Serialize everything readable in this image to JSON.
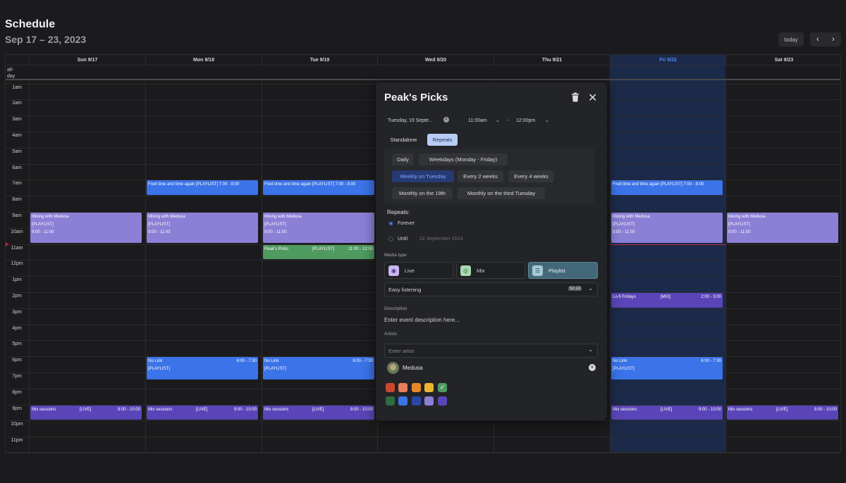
{
  "header": {
    "title": "Schedule",
    "range": "Sep 17 – 23, 2023"
  },
  "nav": {
    "today": "today",
    "prev": "‹",
    "next": "›"
  },
  "calendar": {
    "allday_label_1": "all-",
    "allday_label_2": "day",
    "days": [
      "Sun 9/17",
      "Mon 9/18",
      "Tue 9/19",
      "Wed 9/20",
      "Thu 9/21",
      "Fri 9/22",
      "Sat 9/23"
    ],
    "today_color": "#4f8bff",
    "hours": [
      "1am",
      "2am",
      "3am",
      "4am",
      "5am",
      "6am",
      "7am",
      "8am",
      "9am",
      "10am",
      "11am",
      "12pm",
      "1pm",
      "2pm",
      "3pm",
      "4pm",
      "5pm",
      "6pm",
      "7pm",
      "8pm",
      "9pm",
      "10pm",
      "11pm"
    ]
  },
  "events": {
    "fred": {
      "title": "Fred time and time again",
      "tag": "[PLAYLIST]",
      "time": "7:00 - 8:00"
    },
    "medusa": {
      "title": "Mixing with Medusa",
      "tag": "[PLAYLIST]",
      "time": "9:00 - 11:00"
    },
    "peaks": {
      "title": "Peak's Picks",
      "tag": "[PLAYLIST]",
      "time": "11:00 - 12:00"
    },
    "lofi": {
      "title": "Lo-fi Fridays",
      "tag": "[MIX]",
      "time": "2:00 - 3:00"
    },
    "nolink": {
      "title": "No Link",
      "tag": "[PLAYLIST]",
      "time": "6:00 - 7:30"
    },
    "mix": {
      "title": "Mix sessions",
      "tag": "[LIVE]",
      "time": "9:00 - 10:00"
    }
  },
  "modal": {
    "title": "Peak's Picks",
    "date": "Tuesday, 19 Septe...",
    "dot": "·",
    "start": "11:00am",
    "dash": "-",
    "end": "12:00pm",
    "mode_standalone": "Standalone",
    "mode_repeats": "Repeats",
    "options": [
      "Daily",
      "Weekdays (Monday - Friday)",
      "Weekly on Tuesday",
      "Every 2 weeks",
      "Every 4 weeks",
      "Monthly on the 19th",
      "Monthly on the third Tuesday"
    ],
    "repeats_label": "Repeats:",
    "forever": "Forever",
    "until": "Until",
    "until_date": "22 September 2024",
    "media_label": "Media type",
    "media": [
      "Live",
      "Mix",
      "Playlist"
    ],
    "playlist_name": "Easy listening",
    "playlist_duration": "52:13",
    "description_label": "Description",
    "description_placeholder": "Enter event description here...",
    "artists_label": "Artists",
    "artist_placeholder": "Enter artist",
    "artist_name": "Medusa",
    "swatches": [
      "#c9472d",
      "#e87e5b",
      "#e8882a",
      "#eab530",
      "#4f9a62",
      "#2f6b45",
      "#3b73e8",
      "#2a46a8",
      "#8b7fd6",
      "#5a45b8"
    ]
  }
}
